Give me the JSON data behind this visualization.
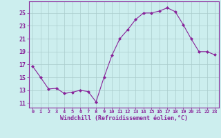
{
  "x": [
    0,
    1,
    2,
    3,
    4,
    5,
    6,
    7,
    8,
    9,
    10,
    11,
    12,
    13,
    14,
    15,
    16,
    17,
    18,
    19,
    20,
    21,
    22,
    23
  ],
  "y": [
    16.7,
    15.0,
    13.2,
    13.3,
    12.5,
    12.7,
    13.0,
    12.8,
    11.2,
    15.0,
    18.4,
    21.0,
    22.4,
    24.0,
    25.0,
    25.0,
    25.3,
    25.8,
    25.2,
    23.2,
    21.0,
    19.0,
    19.0,
    18.5
  ],
  "line_color": "#882299",
  "marker": "D",
  "marker_size": 2.0,
  "bg_color": "#cceeee",
  "grid_color": "#aacccc",
  "xlabel": "Windchill (Refroidissement éolien,°C)",
  "ylabel_ticks": [
    11,
    13,
    15,
    17,
    19,
    21,
    23,
    25
  ],
  "ylim": [
    10.3,
    26.8
  ],
  "xlim": [
    -0.5,
    23.5
  ],
  "xticks": [
    0,
    1,
    2,
    3,
    4,
    5,
    6,
    7,
    8,
    9,
    10,
    11,
    12,
    13,
    14,
    15,
    16,
    17,
    18,
    19,
    20,
    21,
    22,
    23
  ],
  "tick_color": "#882299",
  "label_color": "#882299",
  "spine_color": "#882299",
  "axis_bg": "#cceeee",
  "xtick_fontsize": 5.0,
  "ytick_fontsize": 6.0,
  "xlabel_fontsize": 6.0
}
